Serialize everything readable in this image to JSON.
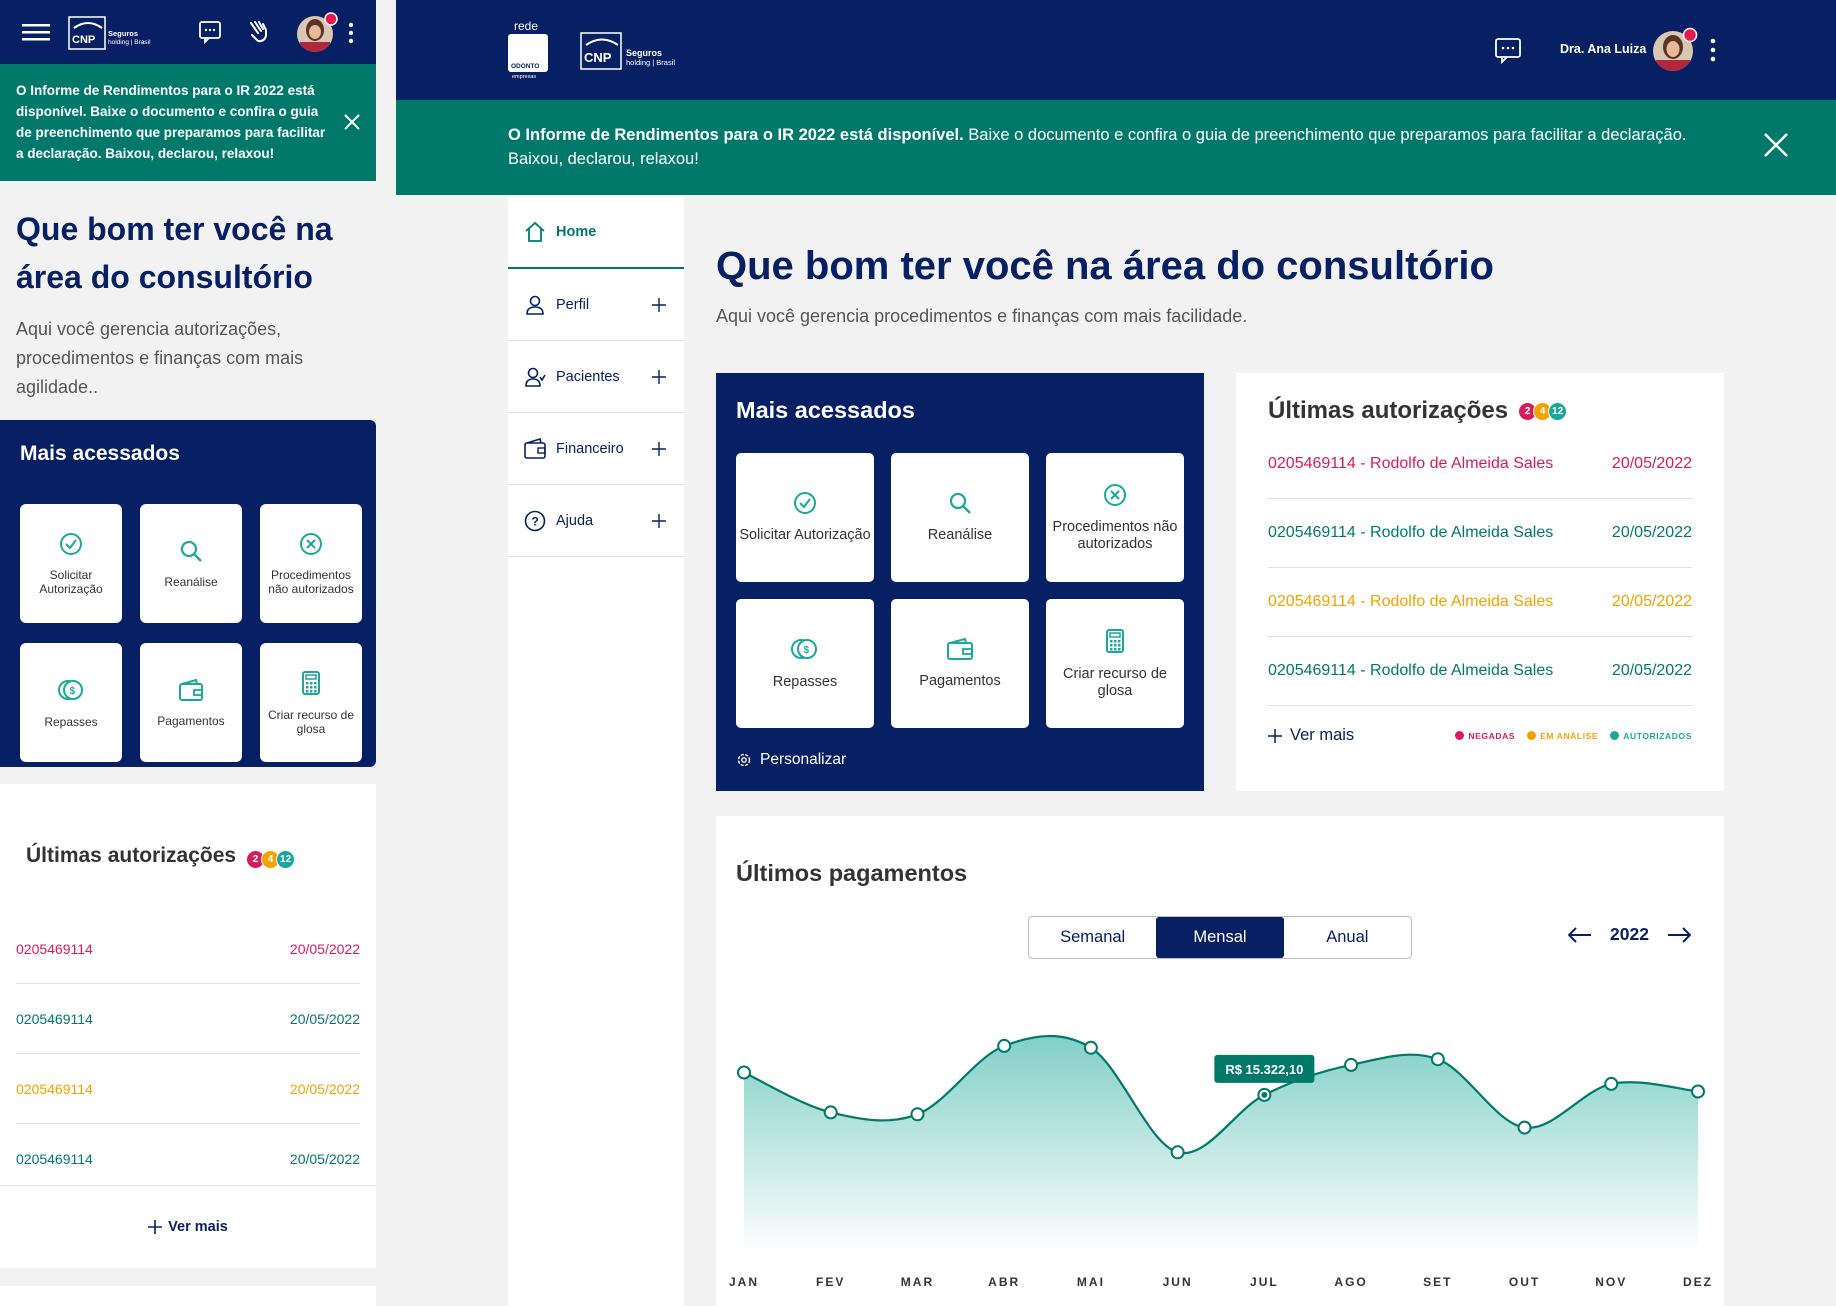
{
  "colors": {
    "navy": "#062063",
    "teal": "#00796b",
    "accent_teal": "#1aa89a",
    "negadas": "#d81b60",
    "em_analise": "#f2a300",
    "autorizados": "#1aa89a"
  },
  "mobile": {
    "banner": "O Informe de Rendimentos para o IR 2022 está disponível. Baixe o documento e confira o guia de preenchimento que preparamos para facilitar a declaração. Baixou, declarou, relaxou!",
    "title": "Que bom ter você na área do consultório",
    "subtitle": "Aqui você gerencia autorizações, procedimentos e finanças com mais agilidade..",
    "mais_acessados": "Mais acessados",
    "tiles": [
      "Solicitar Autorização",
      "Reanálise",
      "Procedimentos não autorizados",
      "Repasses",
      "Pagamentos",
      "Criar recurso de glosa"
    ],
    "ultimas": "Últimas autorizações",
    "badges": [
      "2",
      "4",
      "12"
    ],
    "rows": [
      {
        "id": "0205469114",
        "date": "20/05/2022",
        "status": "negada"
      },
      {
        "id": "0205469114",
        "date": "20/05/2022",
        "status": "autorizado"
      },
      {
        "id": "0205469114",
        "date": "20/05/2022",
        "status": "em_analise"
      },
      {
        "id": "0205469114",
        "date": "20/05/2022",
        "status": "autorizado"
      }
    ],
    "ver_mais": "Ver mais"
  },
  "desktop": {
    "logo_rede": "rede",
    "logo_odonto": "ODONTO",
    "logo_empresas": "empresas",
    "logo_cnp": "CNP",
    "logo_seguros": "Seguros",
    "logo_holding": "holding | Brasil",
    "user_name": "Dra. Ana Luiza",
    "banner_bold": "O Informe de Rendimentos para o IR 2022 está disponível.",
    "banner_rest": " Baixe o documento e confira o guia de preenchimento que preparamos para facilitar a declaração. Baixou, declarou, relaxou!",
    "nav": [
      {
        "label": "Home",
        "icon": "home-icon"
      },
      {
        "label": "Perfil",
        "icon": "user-icon"
      },
      {
        "label": "Pacientes",
        "icon": "patients-icon"
      },
      {
        "label": "Financeiro",
        "icon": "wallet-icon"
      },
      {
        "label": "Ajuda",
        "icon": "help-icon"
      }
    ],
    "title": "Que bom ter você na área do consultório",
    "subtitle": "Aqui você gerencia procedimentos e finanças com mais facilidade.",
    "mais_acessados": "Mais acessados",
    "tiles": [
      "Solicitar Autorização",
      "Reanálise",
      "Procedimentos não autorizados",
      "Repasses",
      "Pagamentos",
      "Criar recurso de glosa"
    ],
    "personalizar": "Personalizar",
    "ultimas": "Últimas autorizações",
    "badges": [
      "2",
      "4",
      "12"
    ],
    "rows": [
      {
        "text": "0205469114 - Rodolfo de Almeida Sales",
        "date": "20/05/2022",
        "status": "negada"
      },
      {
        "text": "0205469114 - Rodolfo de Almeida Sales",
        "date": "20/05/2022",
        "status": "autorizado"
      },
      {
        "text": "0205469114 - Rodolfo de Almeida Sales",
        "date": "20/05/2022",
        "status": "em_analise"
      },
      {
        "text": "0205469114 - Rodolfo de Almeida Sales",
        "date": "20/05/2022",
        "status": "autorizado"
      }
    ],
    "ver_mais": "Ver mais",
    "legend": [
      "NEGADAS",
      "EM ANÁLISE",
      "AUTORIZADOS"
    ],
    "pagamentos": "Últimos pagamentos",
    "segments": [
      "Semanal",
      "Mensal",
      "Anual"
    ],
    "active_segment": "Mensal",
    "year": "2022"
  },
  "chart_data": {
    "type": "area",
    "categories": [
      "JAN",
      "FEV",
      "MAR",
      "ABR",
      "MAI",
      "JUN",
      "JUL",
      "AGO",
      "SET",
      "OUT",
      "NOV",
      "DEZ"
    ],
    "values": [
      16500,
      14400,
      14300,
      17900,
      17800,
      12300,
      15322.1,
      16900,
      17200,
      13600,
      15900,
      15500
    ],
    "highlight": {
      "index": 6,
      "label": "R$ 15.322,10"
    },
    "ylim": [
      10000,
      20000
    ],
    "grid": false
  }
}
